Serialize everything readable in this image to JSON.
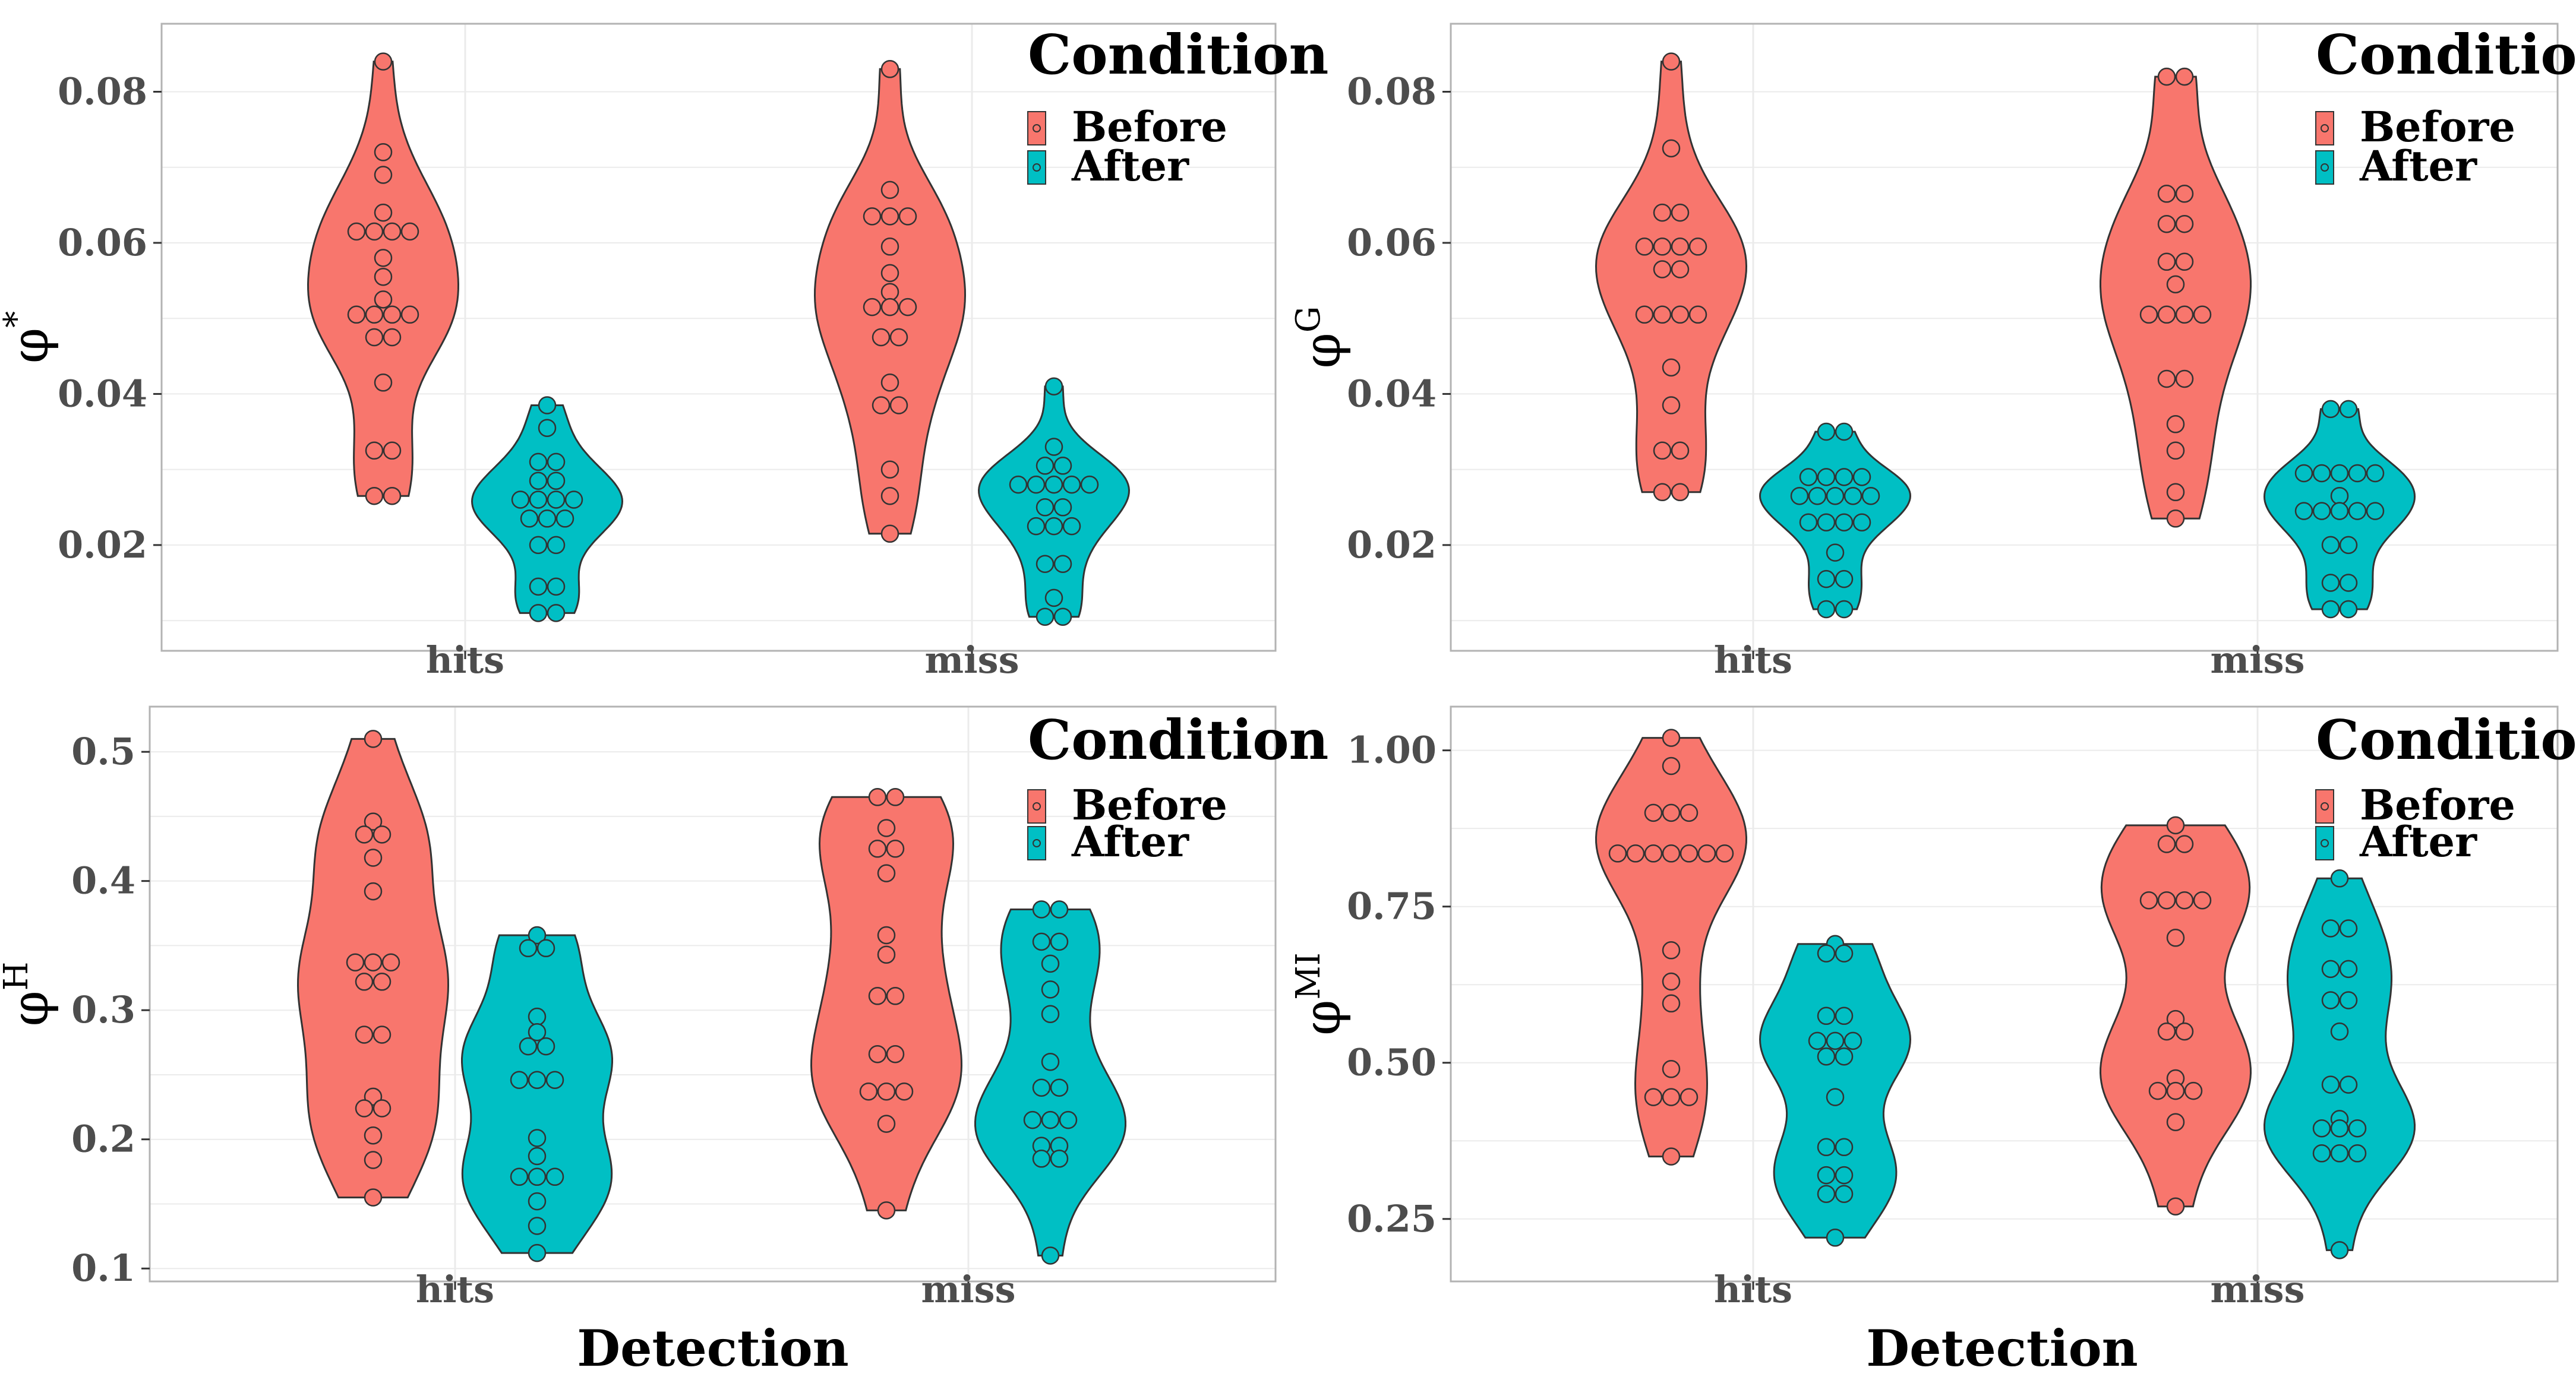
{
  "colors": {
    "before": "#f8766d",
    "after": "#00bfc4",
    "outline": "#333333",
    "grid": "#ebebeb",
    "panel_border": "#b3b3b3"
  },
  "xlabel": "Detection",
  "chart_data": [
    {
      "type": "violin",
      "ylabel": {
        "base": "φ",
        "sup": "*"
      },
      "xlabel": "",
      "ylim": [
        0.006,
        0.089
      ],
      "yticks": [
        0.02,
        0.04,
        0.06,
        0.08
      ],
      "ytick_labels": [
        "0.02",
        "0.04",
        "0.06",
        "0.08"
      ],
      "categories": [
        "hits",
        "miss"
      ],
      "legend": {
        "title": "Condition",
        "entries": [
          "Before",
          "After"
        ]
      },
      "series": [
        {
          "name": "Before",
          "groups": [
            {
              "category": "hits",
              "values": [
                0.084,
                0.072,
                0.069,
                0.064,
                0.0615,
                0.0615,
                0.0615,
                0.0615,
                0.058,
                0.0555,
                0.0525,
                0.0505,
                0.0505,
                0.0505,
                0.0505,
                0.0475,
                0.0475,
                0.0415,
                0.0325,
                0.0325,
                0.0265,
                0.0265
              ]
            },
            {
              "category": "miss",
              "values": [
                0.083,
                0.067,
                0.0635,
                0.0635,
                0.0635,
                0.0595,
                0.056,
                0.0535,
                0.0515,
                0.0515,
                0.0515,
                0.0475,
                0.0475,
                0.0415,
                0.0385,
                0.0385,
                0.03,
                0.0265,
                0.0215
              ]
            }
          ]
        },
        {
          "name": "After",
          "groups": [
            {
              "category": "hits",
              "values": [
                0.0385,
                0.0355,
                0.031,
                0.031,
                0.0285,
                0.0285,
                0.026,
                0.026,
                0.026,
                0.026,
                0.0235,
                0.0235,
                0.0235,
                0.02,
                0.02,
                0.0145,
                0.0145,
                0.011,
                0.011
              ]
            },
            {
              "category": "miss",
              "values": [
                0.041,
                0.033,
                0.0305,
                0.0305,
                0.028,
                0.028,
                0.028,
                0.028,
                0.028,
                0.025,
                0.025,
                0.0225,
                0.0225,
                0.0225,
                0.0175,
                0.0175,
                0.013,
                0.0105,
                0.0105
              ]
            }
          ]
        }
      ]
    },
    {
      "type": "violin",
      "ylabel": {
        "base": "φ",
        "sup": "G"
      },
      "xlabel": "",
      "ylim": [
        0.006,
        0.089
      ],
      "yticks": [
        0.02,
        0.04,
        0.06,
        0.08
      ],
      "ytick_labels": [
        "0.02",
        "0.04",
        "0.06",
        "0.08"
      ],
      "categories": [
        "hits",
        "miss"
      ],
      "legend": {
        "title": "Condition",
        "entries": [
          "Before",
          "After"
        ]
      },
      "series": [
        {
          "name": "Before",
          "groups": [
            {
              "category": "hits",
              "values": [
                0.084,
                0.0725,
                0.064,
                0.064,
                0.0595,
                0.0595,
                0.0595,
                0.0595,
                0.0565,
                0.0565,
                0.0505,
                0.0505,
                0.0505,
                0.0505,
                0.0435,
                0.0385,
                0.0325,
                0.0325,
                0.027,
                0.027
              ]
            },
            {
              "category": "miss",
              "values": [
                0.082,
                0.082,
                0.0665,
                0.0665,
                0.0625,
                0.0625,
                0.0575,
                0.0575,
                0.0545,
                0.0505,
                0.0505,
                0.0505,
                0.0505,
                0.042,
                0.042,
                0.036,
                0.0325,
                0.027,
                0.0235
              ]
            }
          ]
        },
        {
          "name": "After",
          "groups": [
            {
              "category": "hits",
              "values": [
                0.035,
                0.035,
                0.029,
                0.029,
                0.029,
                0.029,
                0.0265,
                0.0265,
                0.0265,
                0.0265,
                0.0265,
                0.023,
                0.023,
                0.023,
                0.023,
                0.019,
                0.0155,
                0.0155,
                0.0115,
                0.0115
              ]
            },
            {
              "category": "miss",
              "values": [
                0.038,
                0.038,
                0.0295,
                0.0295,
                0.0295,
                0.0295,
                0.0295,
                0.0265,
                0.0245,
                0.0245,
                0.0245,
                0.0245,
                0.0245,
                0.02,
                0.02,
                0.015,
                0.015,
                0.0115,
                0.0115
              ]
            }
          ]
        }
      ]
    },
    {
      "type": "violin",
      "ylabel": {
        "base": "φ",
        "sup": "H"
      },
      "xlabel": "Detection",
      "ylim": [
        0.09,
        0.535
      ],
      "yticks": [
        0.1,
        0.2,
        0.3,
        0.4,
        0.5
      ],
      "ytick_labels": [
        "0.1",
        "0.2",
        "0.3",
        "0.4",
        "0.5"
      ],
      "categories": [
        "hits",
        "miss"
      ],
      "legend": {
        "title": "Condition",
        "entries": [
          "Before",
          "After"
        ]
      },
      "series": [
        {
          "name": "Before",
          "groups": [
            {
              "category": "hits",
              "values": [
                0.51,
                0.446,
                0.436,
                0.436,
                0.418,
                0.392,
                0.337,
                0.337,
                0.337,
                0.322,
                0.322,
                0.281,
                0.281,
                0.233,
                0.224,
                0.224,
                0.203,
                0.184,
                0.155
              ]
            },
            {
              "category": "miss",
              "values": [
                0.465,
                0.465,
                0.441,
                0.425,
                0.425,
                0.406,
                0.358,
                0.343,
                0.311,
                0.311,
                0.266,
                0.266,
                0.237,
                0.237,
                0.237,
                0.212,
                0.145
              ]
            }
          ]
        },
        {
          "name": "After",
          "groups": [
            {
              "category": "hits",
              "values": [
                0.358,
                0.348,
                0.348,
                0.295,
                0.283,
                0.272,
                0.272,
                0.246,
                0.246,
                0.246,
                0.201,
                0.187,
                0.171,
                0.171,
                0.171,
                0.152,
                0.133,
                0.112
              ]
            },
            {
              "category": "miss",
              "values": [
                0.378,
                0.378,
                0.353,
                0.353,
                0.336,
                0.316,
                0.297,
                0.26,
                0.24,
                0.24,
                0.215,
                0.215,
                0.215,
                0.195,
                0.195,
                0.185,
                0.185,
                0.11
              ]
            }
          ]
        }
      ]
    },
    {
      "type": "violin",
      "ylabel": {
        "base": "φ",
        "sup": "MI"
      },
      "xlabel": "Detection",
      "ylim": [
        0.15,
        1.07
      ],
      "yticks": [
        0.25,
        0.5,
        0.75,
        1.0
      ],
      "ytick_labels": [
        "0.25",
        "0.50",
        "0.75",
        "1.00"
      ],
      "categories": [
        "hits",
        "miss"
      ],
      "legend": {
        "title": "Condition",
        "entries": [
          "Before",
          "After"
        ]
      },
      "series": [
        {
          "name": "Before",
          "groups": [
            {
              "category": "hits",
              "values": [
                1.02,
                0.975,
                0.9,
                0.9,
                0.9,
                0.835,
                0.835,
                0.835,
                0.835,
                0.835,
                0.835,
                0.835,
                0.68,
                0.63,
                0.595,
                0.49,
                0.445,
                0.445,
                0.445,
                0.35
              ]
            },
            {
              "category": "miss",
              "values": [
                0.88,
                0.85,
                0.85,
                0.76,
                0.76,
                0.76,
                0.76,
                0.7,
                0.57,
                0.55,
                0.55,
                0.475,
                0.455,
                0.455,
                0.455,
                0.405,
                0.27
              ]
            }
          ]
        },
        {
          "name": "After",
          "groups": [
            {
              "category": "hits",
              "values": [
                0.69,
                0.675,
                0.675,
                0.575,
                0.575,
                0.535,
                0.535,
                0.535,
                0.51,
                0.51,
                0.445,
                0.365,
                0.365,
                0.32,
                0.32,
                0.29,
                0.29,
                0.22
              ]
            },
            {
              "category": "miss",
              "values": [
                0.795,
                0.715,
                0.715,
                0.65,
                0.65,
                0.6,
                0.6,
                0.55,
                0.465,
                0.465,
                0.41,
                0.395,
                0.395,
                0.395,
                0.355,
                0.355,
                0.355,
                0.2
              ]
            }
          ]
        }
      ]
    }
  ]
}
